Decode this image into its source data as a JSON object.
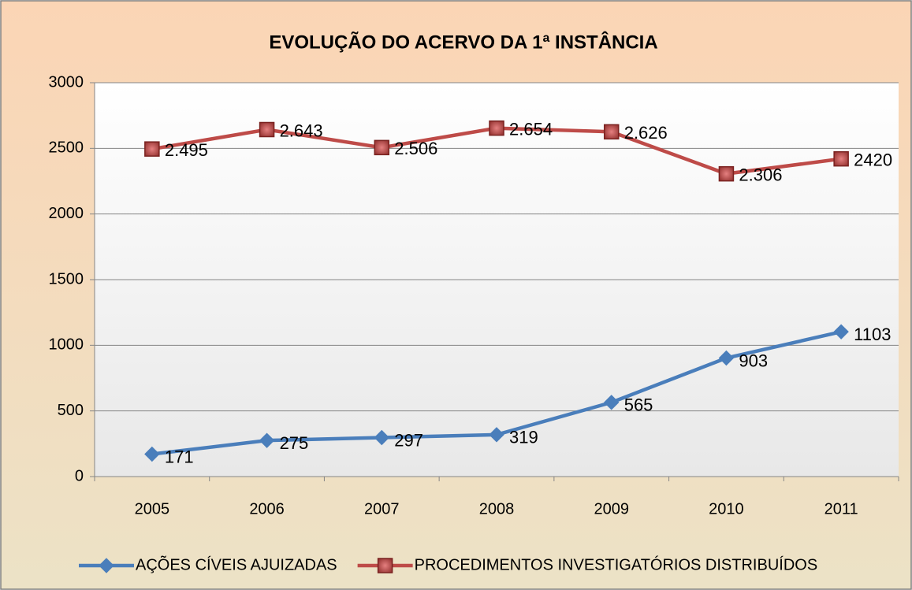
{
  "chart_data": {
    "type": "line",
    "title": "EVOLUÇÃO DO ACERVO DA 1ª INSTÂNCIA",
    "categories": [
      "2005",
      "2006",
      "2007",
      "2008",
      "2009",
      "2010",
      "2011"
    ],
    "series": [
      {
        "name": "AÇÕES CÍVEIS AJUIZADAS",
        "color": "#4a7ebb",
        "marker": "diamond",
        "values": [
          171,
          275,
          297,
          319,
          565,
          903,
          1103
        ]
      },
      {
        "name": "PROCEDIMENTOS INVESTIGATÓRIOS DISTRIBUÍDOS",
        "color": "#be4b48",
        "marker": "square",
        "values": [
          2495,
          2643,
          2506,
          2654,
          2626,
          2306,
          2420
        ],
        "value_labels": [
          "2.495",
          "2.643",
          "2.506",
          "2.654",
          "2.626",
          "2.306",
          "2420"
        ]
      }
    ],
    "ylim": [
      0,
      3000
    ],
    "yticks": [
      0,
      500,
      1000,
      1500,
      2000,
      2500,
      3000
    ],
    "grid": true,
    "legend": "bottom"
  }
}
